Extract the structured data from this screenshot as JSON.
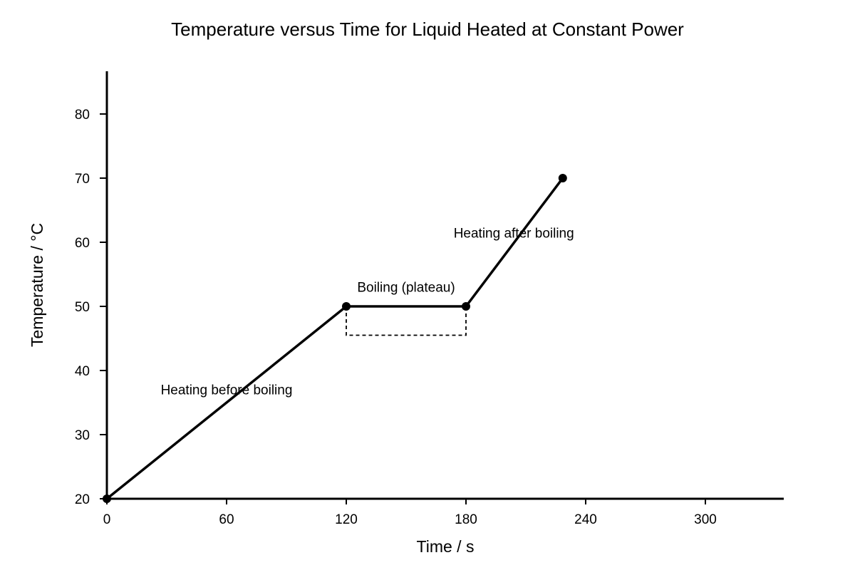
{
  "chart_data": {
    "type": "line",
    "title": "Temperature versus Time for Liquid Heated at Constant Power",
    "xlabel": "Time / s",
    "ylabel": "Temperature / °C",
    "xlim": [
      0,
      340
    ],
    "ylim": [
      20,
      86.7
    ],
    "x_ticks": [
      0,
      60,
      120,
      180,
      240,
      300
    ],
    "y_ticks": [
      20,
      30,
      40,
      50,
      60,
      70,
      80
    ],
    "grid": false,
    "legend": "none",
    "series": [
      {
        "x": [
          0,
          120,
          180,
          228.5
        ],
        "y": [
          20,
          50,
          50,
          70
        ],
        "color": "#000000"
      }
    ],
    "highlight_box": {
      "x": [
        120,
        180
      ],
      "y": [
        45.5,
        50
      ]
    },
    "annotations": [
      {
        "text": "Heating before boiling",
        "x": 60,
        "y": 36.3
      },
      {
        "text": "Boiling (plateau)",
        "x": 150,
        "y": 52.3
      },
      {
        "text": "Heating after boiling",
        "x": 204,
        "y": 60.7
      }
    ]
  }
}
